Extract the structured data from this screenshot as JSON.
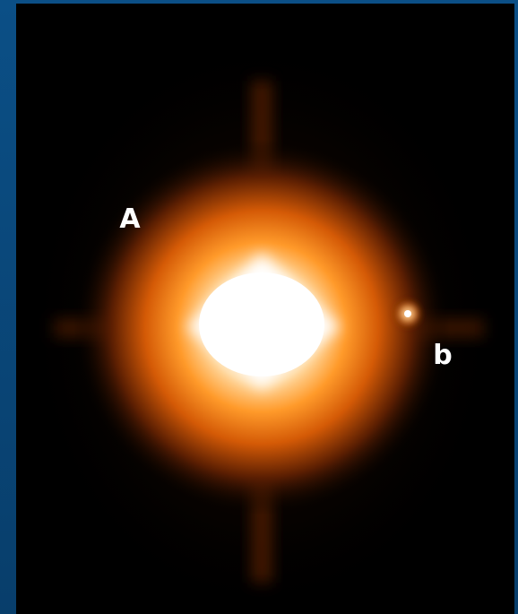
{
  "labels": {
    "primary": "A",
    "companion": "b"
  }
}
